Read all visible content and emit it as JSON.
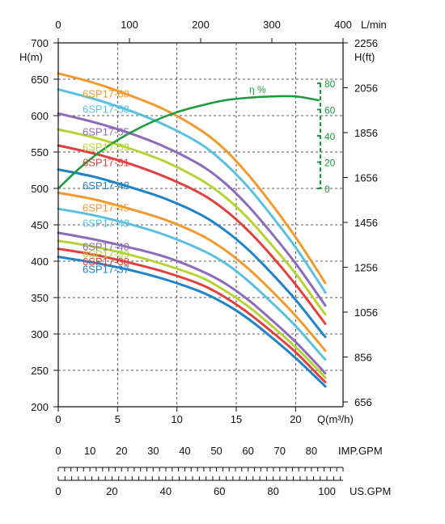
{
  "chart_data": {
    "type": "line",
    "title": "",
    "x_top": {
      "label": "L/min",
      "ticks": [
        0,
        100,
        200,
        300,
        400
      ]
    },
    "x_bottom": {
      "label": "Q(m³/h)",
      "ticks": [
        0,
        5,
        10,
        15,
        20
      ],
      "range": [
        0,
        24
      ]
    },
    "y_left": {
      "label": "H(m)",
      "ticks": [
        200,
        250,
        300,
        350,
        400,
        450,
        500,
        550,
        600,
        650,
        700
      ],
      "range": [
        200,
        700
      ]
    },
    "y_right": {
      "label": "H(ft)",
      "ticks": [
        656,
        856,
        1056,
        1256,
        1456,
        1656,
        1856,
        2056,
        2256
      ]
    },
    "imp_gpm": {
      "label": "IMP.GPM",
      "ticks": [
        0,
        10,
        20,
        30,
        40,
        50,
        60,
        70,
        80
      ],
      "max": 90
    },
    "us_gpm": {
      "label": "US.GPM",
      "ticks": [
        0,
        20,
        40,
        60,
        80,
        100
      ],
      "max": 106
    },
    "efficiency": {
      "label": "η %",
      "axis_ticks": [
        0,
        20,
        40,
        60,
        80
      ],
      "color": "#1a9a3a",
      "x": [
        0,
        2,
        4,
        6,
        8,
        10,
        12,
        14,
        16,
        18,
        20,
        22
      ],
      "values": [
        0,
        17,
        31,
        42,
        51,
        58,
        63,
        67,
        69,
        70,
        70,
        67
      ]
    },
    "series": [
      {
        "name": "6SP17-60",
        "color": "#f29a2e",
        "label_q": 5.5,
        "x": [
          0,
          3,
          6,
          9,
          12,
          14,
          16,
          18,
          20,
          22,
          22.5
        ],
        "values": [
          658,
          645,
          628,
          608,
          580,
          554,
          519,
          478,
          433,
          383,
          370
        ]
      },
      {
        "name": "6SP17-58",
        "color": "#5bc0de",
        "label_q": 5.5,
        "x": [
          0,
          3,
          6,
          9,
          12,
          14,
          16,
          18,
          20,
          22,
          22.5
        ],
        "values": [
          636,
          623,
          607,
          587,
          561,
          535,
          502,
          462,
          419,
          370,
          357
        ]
      },
      {
        "name": "6SP17-55",
        "color": "#8e6bb8",
        "label_q": 5.5,
        "x": [
          0,
          3,
          6,
          9,
          12,
          14,
          16,
          18,
          20,
          22,
          22.5
        ],
        "values": [
          603,
          591,
          576,
          557,
          532,
          508,
          476,
          438,
          397,
          351,
          339
        ]
      },
      {
        "name": "6SP17-53",
        "color": "#b5d334",
        "label_q": 5.5,
        "x": [
          0,
          3,
          6,
          9,
          12,
          14,
          16,
          18,
          20,
          22,
          22.5
        ],
        "values": [
          581,
          570,
          555,
          537,
          512,
          489,
          459,
          422,
          383,
          338,
          327
        ]
      },
      {
        "name": "6SP17-51",
        "color": "#e0413e",
        "label_q": 5.5,
        "x": [
          0,
          3,
          6,
          9,
          12,
          14,
          16,
          18,
          20,
          22,
          22.5
        ],
        "values": [
          559,
          548,
          534,
          516,
          493,
          471,
          442,
          407,
          368,
          325,
          314
        ]
      },
      {
        "name": "6SP17-48",
        "color": "#1f83c8",
        "label_q": 5.5,
        "x": [
          0,
          3,
          6,
          9,
          12,
          14,
          16,
          18,
          20,
          22,
          22.5
        ],
        "values": [
          526,
          516,
          502,
          486,
          464,
          443,
          416,
          383,
          347,
          306,
          296
        ]
      },
      {
        "name": "6SP17-45",
        "color": "#f29a2e",
        "label_q": 5.5,
        "x": [
          0,
          3,
          6,
          9,
          12,
          14,
          16,
          18,
          20,
          22,
          22.5
        ],
        "values": [
          494,
          485,
          472,
          457,
          436,
          416,
          390,
          359,
          325,
          287,
          277
        ]
      },
      {
        "name": "6SP17-43",
        "color": "#5bc0de",
        "label_q": 5.5,
        "x": [
          0,
          3,
          6,
          9,
          12,
          14,
          16,
          18,
          20,
          22,
          22.5
        ],
        "values": [
          472,
          463,
          451,
          436,
          416,
          398,
          373,
          343,
          311,
          274,
          265
        ]
      },
      {
        "name": "6SP17-40",
        "color": "#8e6bb8",
        "label_q": 5.5,
        "x": [
          0,
          3,
          6,
          9,
          12,
          14,
          16,
          18,
          20,
          22,
          22.5
        ],
        "values": [
          439,
          430,
          419,
          406,
          387,
          370,
          347,
          319,
          289,
          255,
          246
        ]
      },
      {
        "name": "6SP17-39",
        "color": "#b5d334",
        "label_q": 5.5,
        "x": [
          0,
          3,
          6,
          9,
          12,
          14,
          16,
          18,
          20,
          22,
          22.5
        ],
        "values": [
          428,
          420,
          409,
          395,
          378,
          360,
          338,
          311,
          282,
          249,
          240
        ]
      },
      {
        "name": "6SP17-38",
        "color": "#e0413e",
        "label_q": 5.5,
        "x": [
          0,
          3,
          6,
          9,
          12,
          14,
          16,
          18,
          20,
          22,
          22.5
        ],
        "values": [
          417,
          409,
          398,
          385,
          368,
          351,
          329,
          303,
          275,
          242,
          234
        ]
      },
      {
        "name": "6SP17-37",
        "color": "#1f83c8",
        "label_q": 5.5,
        "x": [
          0,
          3,
          6,
          9,
          12,
          14,
          16,
          18,
          20,
          22,
          22.5
        ],
        "values": [
          406,
          398,
          388,
          375,
          358,
          342,
          321,
          295,
          267,
          236,
          228
        ]
      }
    ],
    "grid": true
  }
}
